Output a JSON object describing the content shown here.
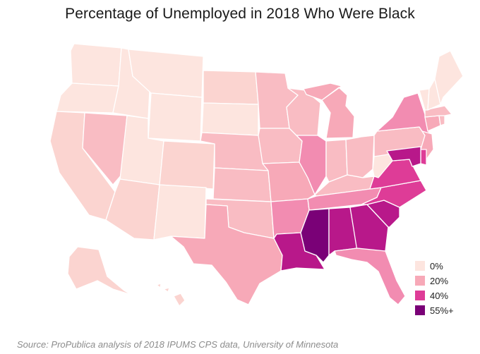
{
  "title": "Percentage of Unemployed in 2018 Who Were Black",
  "source": "Source: ProPublica analysis of 2018 IPUMS CPS data, University of Minnesota",
  "legend": [
    {
      "label": "0%",
      "color": "#fde5df"
    },
    {
      "label": "20%",
      "color": "#f7a9b8"
    },
    {
      "label": "40%",
      "color": "#de3c97"
    },
    {
      "label": "55%+",
      "color": "#7a0177"
    }
  ],
  "colors": {
    "level0": "#fde5df",
    "level1": "#fbd4d0",
    "level2": "#f9bcc3",
    "level3": "#f7a9b8",
    "level4": "#f28cb1",
    "level5": "#de3c97",
    "level6": "#b8188a",
    "level7": "#7a0177"
  },
  "states": [
    {
      "id": "WA",
      "level": 0
    },
    {
      "id": "OR",
      "level": 0
    },
    {
      "id": "CA",
      "level": 1
    },
    {
      "id": "NV",
      "level": 2
    },
    {
      "id": "ID",
      "level": 0
    },
    {
      "id": "MT",
      "level": 0
    },
    {
      "id": "WY",
      "level": 0
    },
    {
      "id": "UT",
      "level": 0
    },
    {
      "id": "AZ",
      "level": 1
    },
    {
      "id": "CO",
      "level": 1
    },
    {
      "id": "NM",
      "level": 0
    },
    {
      "id": "ND",
      "level": 1
    },
    {
      "id": "SD",
      "level": 0
    },
    {
      "id": "NE",
      "level": 2
    },
    {
      "id": "KS",
      "level": 2
    },
    {
      "id": "OK",
      "level": 2
    },
    {
      "id": "TX",
      "level": 3
    },
    {
      "id": "MN",
      "level": 2
    },
    {
      "id": "IA",
      "level": 2
    },
    {
      "id": "MO",
      "level": 3
    },
    {
      "id": "AR",
      "level": 4
    },
    {
      "id": "LA",
      "level": 6
    },
    {
      "id": "WI",
      "level": 2
    },
    {
      "id": "IL",
      "level": 4
    },
    {
      "id": "MI",
      "level": 3
    },
    {
      "id": "IN",
      "level": 2
    },
    {
      "id": "OH",
      "level": 2
    },
    {
      "id": "KY",
      "level": 2
    },
    {
      "id": "TN",
      "level": 4
    },
    {
      "id": "MS",
      "level": 7
    },
    {
      "id": "AL",
      "level": 6
    },
    {
      "id": "GA",
      "level": 6
    },
    {
      "id": "FL",
      "level": 4
    },
    {
      "id": "SC",
      "level": 6
    },
    {
      "id": "NC",
      "level": 5
    },
    {
      "id": "VA",
      "level": 5
    },
    {
      "id": "WV",
      "level": 0
    },
    {
      "id": "PA",
      "level": 2
    },
    {
      "id": "NY",
      "level": 4
    },
    {
      "id": "NJ",
      "level": 3
    },
    {
      "id": "DE",
      "level": 5
    },
    {
      "id": "MD",
      "level": 6
    },
    {
      "id": "CT",
      "level": 3
    },
    {
      "id": "RI",
      "level": 2
    },
    {
      "id": "MA",
      "level": 2
    },
    {
      "id": "VT",
      "level": 0
    },
    {
      "id": "NH",
      "level": 0
    },
    {
      "id": "ME",
      "level": 0
    },
    {
      "id": "AK",
      "level": 1
    },
    {
      "id": "HI",
      "level": 1
    }
  ]
}
